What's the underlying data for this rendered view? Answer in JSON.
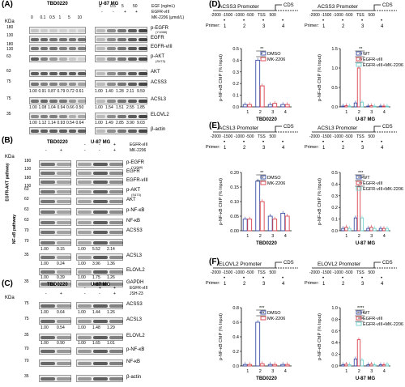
{
  "panels": {
    "A": {
      "label": "(A)",
      "cell_lines": [
        "TBD0220",
        "U-87 MG"
      ],
      "egf_label": "EGF (ng/mL)",
      "egf_vals_a": [
        "0",
        "0.5",
        "5",
        "50"
      ],
      "egfrviii_label": "EGFR-vIII",
      "egfrviii_marks": [
        "-",
        "-",
        "+",
        "+"
      ],
      "mk_label": "MK-2206 (μmol/L)",
      "mk_vals": [
        "0",
        "0.1",
        "0.5",
        "1",
        "5",
        "10"
      ],
      "kda": "KDa",
      "markers": [
        "180",
        "130",
        "180",
        "130",
        "63",
        "63",
        "75",
        "75",
        "35"
      ],
      "proteins": [
        "p-EGFR",
        "(Y1068)",
        "EGFR",
        "EGFR-vIII",
        "p-AKT",
        "(S473)",
        "AKT",
        "ACSS3",
        "ACSL3",
        "ELOVL2",
        "β-actin"
      ],
      "q_acss3": [
        "1.00",
        "0.91",
        "0.87",
        "0.79",
        "0.72",
        "0.61",
        "1.00",
        "1.40",
        "1.28",
        "2.11",
        "9.59"
      ],
      "q_acsl3": [
        "1.00",
        "1.08",
        "1.04",
        "0.94",
        "0.66",
        "0.50",
        "1.00",
        "1.54",
        "1.51",
        "2.55",
        "1.85"
      ],
      "q_elovl2": [
        "1.00",
        "1.12",
        "1.14",
        "0.93",
        "0.54",
        "0.64",
        "1.00",
        "1.49",
        "2.85",
        "3.90",
        "9.03"
      ]
    },
    "B": {
      "label": "(B)",
      "cell_lines": [
        "TBD0220",
        "U-87 MG"
      ],
      "egfrviii_label": "EGFR-vIII",
      "mk_label": "MK-2206",
      "marks_egfr": [
        "-",
        "-",
        "+",
        "+"
      ],
      "marks_mk": [
        "-",
        "+",
        "-",
        "+"
      ],
      "kda": "KDa",
      "pathway1": "EGFR-AKT pathway",
      "pathway2": "NF-κB pathway",
      "markers": [
        "180",
        "130",
        "180",
        "130",
        "63",
        "63",
        "63",
        "63",
        "70",
        "70",
        "35",
        "35"
      ],
      "proteins": [
        "p-EGFR",
        "(Y1068)",
        "EGFR",
        "EGFR-vIII",
        "p-AKT",
        "(S473)",
        "AKT",
        "p-NF-κB",
        "NF-κB",
        "ACSS3",
        "ACSL3",
        "ELOVL2",
        "GAPDH"
      ],
      "q_acss3": [
        "1.00",
        "0.15",
        "1.00",
        "5.52",
        "2.14"
      ],
      "q_acsl3": [
        "1.00",
        "0.24",
        "1.00",
        "3.96",
        "1.36"
      ],
      "q_elovl2": [
        "1.00",
        "0.39",
        "1.00",
        "1.75",
        "1.26"
      ]
    },
    "C": {
      "label": "(C)",
      "cell_lines": [
        "TBD0220",
        "U-87 MG"
      ],
      "egfrviii_label": "EGFR-vIII",
      "jsh_label": "JSH-23",
      "marks_egfr": [
        "-",
        "-",
        "+",
        "+"
      ],
      "marks_jsh": [
        "-",
        "+",
        "-",
        "+"
      ],
      "kda": "KDa",
      "markers": [
        "75",
        "75",
        "35",
        "70",
        "70",
        "35"
      ],
      "proteins": [
        "ACSS3",
        "ACSL3",
        "ELOVL2",
        "p-NF-κB",
        "NF-κB",
        "β-actin"
      ],
      "q_acss3": [
        "1.00",
        "0.64",
        "1.00",
        "1.44",
        "1.26"
      ],
      "q_acsl3": [
        "1.00",
        "0.54",
        "1.00",
        "1.48",
        "1.29"
      ],
      "q_elovl2": [
        "1.00",
        "0.90",
        "1.00",
        "1.65",
        "1.01"
      ]
    },
    "D": {
      "label": "(D)"
    },
    "E": {
      "label": "(E)"
    },
    "F": {
      "label": "(F)"
    }
  },
  "promoter": {
    "scale": [
      "-2000",
      "-1500",
      "-1000",
      "-500",
      "TSS",
      "500"
    ],
    "cds": "CDS",
    "primer_label": "Primer:",
    "primers": [
      "1",
      "2",
      "3",
      "4"
    ]
  },
  "chart_data": [
    {
      "type": "bar",
      "panel": "D-left",
      "title": "ACSS3 Promoter",
      "xlabel": "TBD0220",
      "ylabel": "p-NF-κB ChIP (% Input)",
      "categories": [
        "1",
        "2",
        "3",
        "4"
      ],
      "ylim": [
        0,
        0.5
      ],
      "yticks": [
        "0.0",
        "0.1",
        "0.2",
        "0.3",
        "0.4",
        "0.5"
      ],
      "series": [
        {
          "name": "DMSO",
          "color": "#3a4fa5",
          "values": [
            0.02,
            0.4,
            0.02,
            0.02
          ]
        },
        {
          "name": "MK-2206",
          "color": "#d9434d",
          "values": [
            0.02,
            0.18,
            0.03,
            0.02
          ]
        }
      ],
      "annotations": [
        "**",
        "*"
      ]
    },
    {
      "type": "bar",
      "panel": "D-right",
      "title": "ACSS3 Promoter",
      "xlabel": "U-87 MG",
      "ylabel": "p-NF-κB ChIP (% Input)",
      "categories": [
        "1",
        "2",
        "3",
        "4"
      ],
      "ylim": [
        0,
        1.5
      ],
      "yticks": [
        "0.0",
        "0.5",
        "1.0",
        "1.5"
      ],
      "series": [
        {
          "name": "WT",
          "color": "#3a4fa5",
          "values": [
            0.02,
            0.1,
            0.02,
            0.02
          ]
        },
        {
          "name": "EGFR-vIII",
          "color": "#d9434d",
          "values": [
            0.03,
            1.0,
            0.03,
            0.02
          ]
        },
        {
          "name": "EGFR-vIII+MK-2206",
          "color": "#6fd3d0",
          "values": [
            0.02,
            0.12,
            0.02,
            0.02
          ]
        }
      ],
      "annotations": [
        "**",
        "**",
        "**"
      ]
    },
    {
      "type": "bar",
      "panel": "E-left",
      "title": "ACSL3 Promoter",
      "xlabel": "TBD0220",
      "ylabel": "p-NF-κB ChIP (% Input)",
      "categories": [
        "1",
        "2",
        "3",
        "4"
      ],
      "ylim": [
        0,
        0.2
      ],
      "yticks": [
        "0.00",
        "0.05",
        "0.10",
        "0.15",
        "0.20"
      ],
      "series": [
        {
          "name": "DMSO",
          "color": "#3a4fa5",
          "values": [
            0.04,
            0.17,
            0.05,
            0.06
          ]
        },
        {
          "name": "MK-2206",
          "color": "#d9434d",
          "values": [
            0.04,
            0.1,
            0.04,
            0.05
          ]
        }
      ],
      "annotations": [
        "**",
        "**"
      ]
    },
    {
      "type": "bar",
      "panel": "E-right",
      "title": "ACSL3 Promoter",
      "xlabel": "U-87 MG",
      "ylabel": "p-NF-κB ChIP (% Input)",
      "categories": [
        "1",
        "2",
        "3",
        "4"
      ],
      "ylim": [
        0,
        0.5
      ],
      "yticks": [
        "0.0",
        "0.1",
        "0.2",
        "0.3",
        "0.4",
        "0.5"
      ],
      "series": [
        {
          "name": "WT",
          "color": "#3a4fa5",
          "values": [
            0.02,
            0.11,
            0.02,
            0.02
          ]
        },
        {
          "name": "EGFR-vIII",
          "color": "#d9434d",
          "values": [
            0.03,
            0.38,
            0.03,
            0.02
          ]
        },
        {
          "name": "EGFR-vIII+MK-2206",
          "color": "#6fd3d0",
          "values": [
            0.02,
            0.11,
            0.02,
            0.02
          ]
        }
      ],
      "annotations": [
        "***",
        "***",
        "**"
      ]
    },
    {
      "type": "bar",
      "panel": "F-left",
      "title": "ELOVL2 Promoter",
      "xlabel": "TBD0220",
      "ylabel": "p-NF-κB ChIP (% Input)",
      "categories": [
        "1",
        "2",
        "3",
        "4"
      ],
      "ylim": [
        0,
        0.8
      ],
      "yticks": [
        "0.0",
        "0.2",
        "0.4",
        "0.6",
        "0.8"
      ],
      "series": [
        {
          "name": "DMSO",
          "color": "#3a4fa5",
          "values": [
            0.02,
            0.6,
            0.02,
            0.02
          ]
        },
        {
          "name": "MK-2206",
          "color": "#d9434d",
          "values": [
            0.02,
            0.03,
            0.02,
            0.02
          ]
        }
      ],
      "annotations": [
        "***",
        "***"
      ]
    },
    {
      "type": "bar",
      "panel": "F-right",
      "title": "ELOVL2 Promoter",
      "xlabel": "U-87 MG",
      "ylabel": "p-NF-κB ChIP (% Input)",
      "categories": [
        "1",
        "2",
        "3",
        "4"
      ],
      "ylim": [
        0,
        1.0
      ],
      "yticks": [
        "0.0",
        "0.2",
        "0.4",
        "0.6",
        "0.8",
        "1.0"
      ],
      "series": [
        {
          "name": "WT",
          "color": "#3a4fa5",
          "values": [
            0.02,
            0.12,
            0.02,
            0.02
          ]
        },
        {
          "name": "EGFR-vIII",
          "color": "#d9434d",
          "values": [
            0.03,
            0.45,
            0.03,
            0.02
          ]
        },
        {
          "name": "EGFR-vIII+MK-2206",
          "color": "#6fd3d0",
          "values": [
            0.02,
            0.1,
            0.02,
            0.03
          ]
        }
      ],
      "annotations": [
        "****",
        "****",
        "***"
      ]
    }
  ]
}
